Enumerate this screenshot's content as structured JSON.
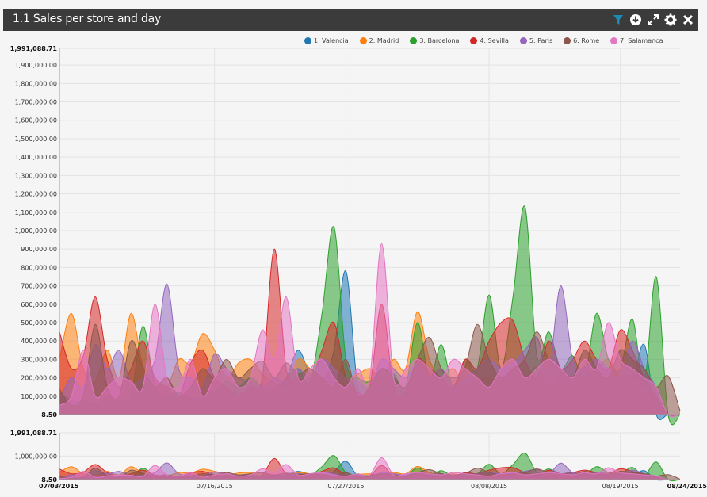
{
  "header": {
    "title": "1.1 Sales per store and day",
    "icons": [
      "filter-icon",
      "download-icon",
      "expand-icon",
      "gear-icon",
      "close-icon"
    ],
    "filter_color": "#1f8bb5"
  },
  "chart_data": {
    "type": "area",
    "title": "1.1 Sales per store and day",
    "xlabel": "",
    "ylabel": "",
    "x_range": [
      "07/03/2015",
      "08/24/2015"
    ],
    "ylim": [
      8.5,
      1991088.71
    ],
    "y_ticks": [
      "8.50",
      "100,000.00",
      "200,000.00",
      "300,000.00",
      "400,000.00",
      "500,000.00",
      "600,000.00",
      "700,000.00",
      "800,000.00",
      "900,000.00",
      "1,000,000.00",
      "1,100,000.00",
      "1,200,000.00",
      "1,300,000.00",
      "1,400,000.00",
      "1,500,000.00",
      "1,600,000.00",
      "1,700,000.00",
      "1,800,000.00",
      "1,900,000.00",
      "1,991,088.71"
    ],
    "y_tick_values": [
      8.5,
      100000,
      200000,
      300000,
      400000,
      500000,
      600000,
      700000,
      800000,
      900000,
      1000000,
      1100000,
      1200000,
      1300000,
      1400000,
      1500000,
      1600000,
      1700000,
      1800000,
      1900000,
      1991088.71
    ],
    "x_ticks": [
      "07/16/2015",
      "07/27/2015",
      "08/08/2015",
      "08/19/2015"
    ],
    "x_tick_days": [
      13,
      24,
      36,
      47
    ],
    "x_edge_labels": [
      "07/03/2015",
      "08/24/2015"
    ],
    "grid": true,
    "legend_position": "top-right",
    "series": [
      {
        "name": "1. Valencia",
        "color": "#1f77b4",
        "values": [
          120000,
          80000,
          60000,
          50000,
          100000,
          80000,
          60000,
          50000,
          40000,
          60000,
          80000,
          90000,
          60000,
          80000,
          100000,
          120000,
          80000,
          100000,
          150000,
          200000,
          350000,
          220000,
          180000,
          350000,
          780000,
          150000,
          120000,
          100000,
          180000,
          120000,
          250000,
          180000,
          120000,
          120000,
          100000,
          140000,
          80000,
          160000,
          150000,
          180000,
          120000,
          100000,
          160000,
          120000,
          260000,
          90000,
          100000,
          150000,
          180000,
          380000,
          0,
          0,
          0
        ]
      },
      {
        "name": "2. Madrid",
        "color": "#ff7f0e",
        "values": [
          300000,
          550000,
          250000,
          180000,
          350000,
          200000,
          550000,
          260000,
          200000,
          150000,
          300000,
          280000,
          440000,
          350000,
          200000,
          280000,
          300000,
          220000,
          170000,
          150000,
          300000,
          250000,
          200000,
          250000,
          200000,
          220000,
          250000,
          200000,
          300000,
          250000,
          560000,
          300000,
          200000,
          250000,
          150000,
          200000,
          200000,
          180000,
          250000,
          200000,
          260000,
          150000,
          220000,
          200000,
          200000,
          250000,
          300000,
          200000,
          220000,
          150000,
          100000,
          0,
          0
        ]
      },
      {
        "name": "3. Barcelona",
        "color": "#2ca02c",
        "values": [
          100000,
          50000,
          80000,
          60000,
          70000,
          80000,
          100000,
          480000,
          150000,
          100000,
          120000,
          80000,
          100000,
          120000,
          180000,
          150000,
          200000,
          150000,
          120000,
          200000,
          250000,
          180000,
          550000,
          1020000,
          300000,
          200000,
          180000,
          250000,
          220000,
          150000,
          500000,
          200000,
          380000,
          150000,
          300000,
          250000,
          650000,
          250000,
          640000,
          1130000,
          320000,
          450000,
          250000,
          320000,
          200000,
          550000,
          300000,
          250000,
          520000,
          180000,
          750000,
          0,
          0
        ]
      },
      {
        "name": "4. Sevilla",
        "color": "#d62728",
        "values": [
          450000,
          250000,
          320000,
          640000,
          300000,
          150000,
          250000,
          400000,
          200000,
          150000,
          100000,
          280000,
          350000,
          200000,
          150000,
          100000,
          150000,
          200000,
          900000,
          250000,
          200000,
          180000,
          350000,
          500000,
          200000,
          120000,
          150000,
          600000,
          150000,
          120000,
          300000,
          250000,
          200000,
          150000,
          300000,
          250000,
          400000,
          500000,
          510000,
          300000,
          200000,
          400000,
          250000,
          300000,
          400000,
          300000,
          250000,
          460000,
          350000,
          200000,
          100000,
          0,
          0
        ]
      },
      {
        "name": "5. Paris",
        "color": "#9467bd",
        "values": [
          80000,
          200000,
          150000,
          380000,
          250000,
          350000,
          180000,
          200000,
          300000,
          710000,
          250000,
          200000,
          150000,
          330000,
          250000,
          200000,
          180000,
          150000,
          200000,
          180000,
          250000,
          200000,
          300000,
          250000,
          200000,
          180000,
          150000,
          300000,
          250000,
          200000,
          280000,
          200000,
          250000,
          150000,
          200000,
          250000,
          300000,
          250000,
          280000,
          350000,
          420000,
          250000,
          700000,
          300000,
          250000,
          300000,
          250000,
          200000,
          400000,
          250000,
          150000,
          0,
          0
        ]
      },
      {
        "name": "6. Rome",
        "color": "#8c564b",
        "values": [
          140000,
          50000,
          100000,
          490000,
          150000,
          100000,
          400000,
          250000,
          150000,
          200000,
          100000,
          150000,
          250000,
          200000,
          300000,
          200000,
          250000,
          290000,
          200000,
          280000,
          220000,
          250000,
          200000,
          150000,
          300000,
          100000,
          150000,
          250000,
          200000,
          150000,
          300000,
          420000,
          250000,
          200000,
          260000,
          490000,
          300000,
          200000,
          250000,
          300000,
          450000,
          300000,
          250000,
          200000,
          350000,
          250000,
          200000,
          350000,
          300000,
          250000,
          150000,
          210000,
          20000
        ]
      },
      {
        "name": "7. Salamanca",
        "color": "#e377c2",
        "values": [
          50000,
          100000,
          350000,
          100000,
          150000,
          200000,
          180000,
          150000,
          600000,
          200000,
          150000,
          300000,
          100000,
          200000,
          250000,
          150000,
          200000,
          460000,
          300000,
          640000,
          200000,
          250000,
          300000,
          200000,
          150000,
          250000,
          200000,
          930000,
          200000,
          250000,
          300000,
          250000,
          200000,
          300000,
          250000,
          200000,
          150000,
          250000,
          300000,
          200000,
          250000,
          300000,
          250000,
          200000,
          300000,
          250000,
          500000,
          300000,
          250000,
          200000,
          150000,
          0,
          0
        ]
      }
    ]
  }
}
